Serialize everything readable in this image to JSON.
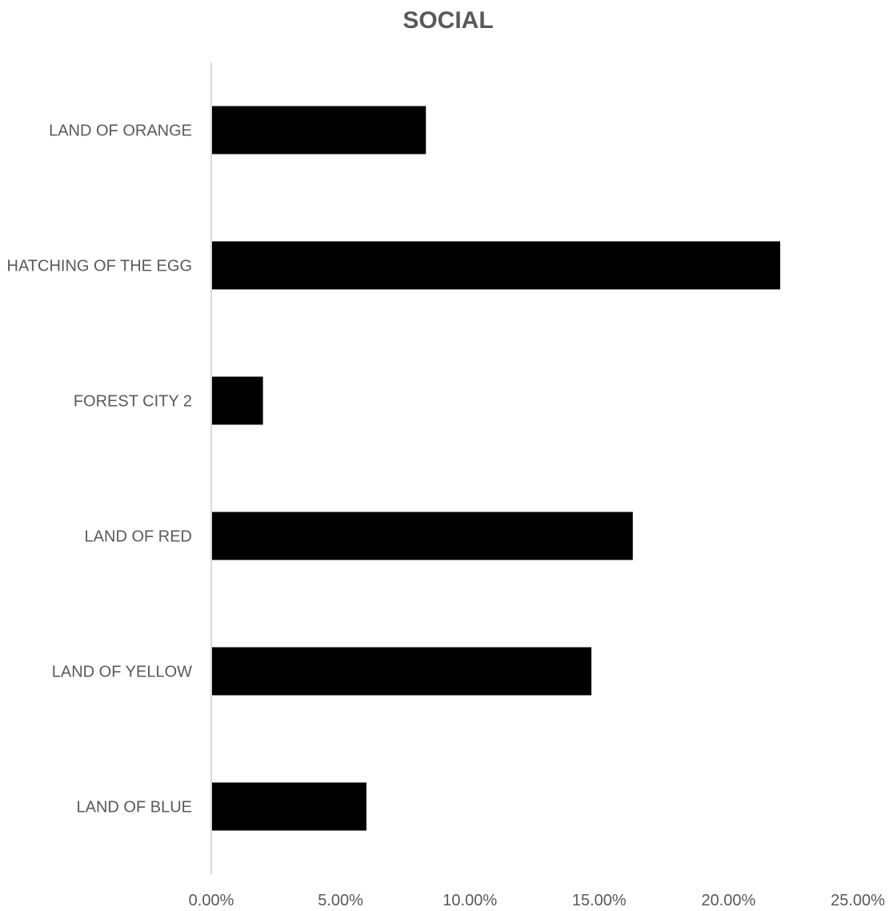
{
  "chart_data": {
    "type": "bar",
    "orientation": "horizontal",
    "title": "SOCIAL",
    "categories": [
      "LAND OF ORANGE",
      "HATCHING OF THE EGG",
      "FOREST CITY 2",
      "LAND OF RED",
      "LAND OF YELLOW",
      "LAND OF BLUE"
    ],
    "values": [
      8.3,
      22.0,
      2.0,
      16.3,
      14.7,
      6.0
    ],
    "value_format": "percent",
    "xlim": [
      0,
      25
    ],
    "xticks": [
      0,
      5,
      10,
      15,
      20,
      25
    ],
    "xtick_labels": [
      "0.00%",
      "5.00%",
      "10.00%",
      "15.00%",
      "20.00%",
      "25.00%"
    ],
    "xlabel": "",
    "ylabel": "",
    "grid": false,
    "legend": "none",
    "bar_color": "#000000",
    "axis_color": "#d9d9d9",
    "text_color": "#595959"
  }
}
